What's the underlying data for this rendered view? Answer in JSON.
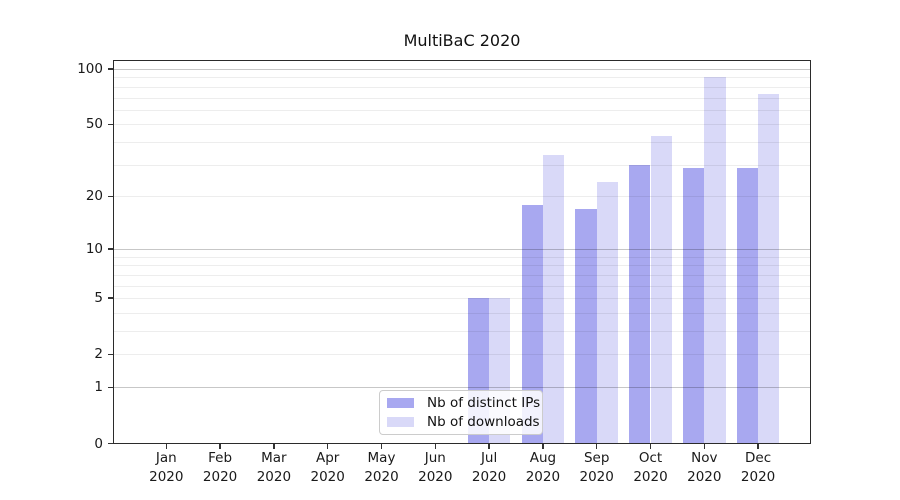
{
  "title": "MultiBaC 2020",
  "legend": {
    "items": [
      {
        "label": "Nb of distinct IPs",
        "color": "#a8a8f0"
      },
      {
        "label": "Nb of downloads",
        "color": "#d9d9f8"
      }
    ]
  },
  "y_axis": {
    "tick_labels": [
      "0",
      "1",
      "2",
      "5",
      "10",
      "20",
      "50",
      "100"
    ]
  },
  "x_axis": {
    "year_label": "2020",
    "months": [
      "Jan",
      "Feb",
      "Mar",
      "Apr",
      "May",
      "Jun",
      "Jul",
      "Aug",
      "Sep",
      "Oct",
      "Nov",
      "Dec"
    ]
  },
  "chart_data": {
    "type": "bar",
    "title": "MultiBaC 2020",
    "categories": [
      "Jan 2020",
      "Feb 2020",
      "Mar 2020",
      "Apr 2020",
      "May 2020",
      "Jun 2020",
      "Jul 2020",
      "Aug 2020",
      "Sep 2020",
      "Oct 2020",
      "Nov 2020",
      "Dec 2020"
    ],
    "series": [
      {
        "name": "Nb of distinct IPs",
        "color": "#a8a8f0",
        "values": [
          0,
          0,
          0,
          0,
          0,
          0,
          5,
          18,
          17,
          30,
          29,
          29
        ]
      },
      {
        "name": "Nb of downloads",
        "color": "#d9d9f8",
        "values": [
          0,
          0,
          0,
          0,
          0,
          0,
          5,
          34,
          24,
          43,
          90,
          73
        ]
      }
    ],
    "xlabel": "",
    "ylabel": "",
    "yscale": "log1p",
    "ylim": [
      0,
      112
    ],
    "y_ticks": [
      0,
      1,
      2,
      5,
      10,
      20,
      50,
      100
    ],
    "y_minor_gridlines": [
      2,
      3,
      4,
      5,
      6,
      7,
      8,
      9,
      20,
      30,
      40,
      50,
      60,
      70,
      80,
      90
    ],
    "y_major_gridlines": [
      1,
      10,
      100
    ],
    "grid": true,
    "legend_position": "lower center inside"
  }
}
